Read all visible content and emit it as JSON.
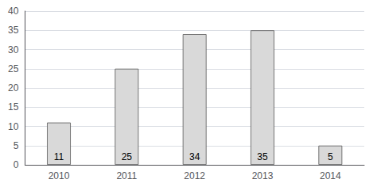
{
  "chart_data": {
    "type": "bar",
    "categories": [
      "2010",
      "2011",
      "2012",
      "2013",
      "2014"
    ],
    "values": [
      11,
      25,
      34,
      35,
      5
    ],
    "color": "#d9d9d9",
    "ylim": [
      0,
      40
    ],
    "yticks": [
      0,
      5,
      10,
      15,
      20,
      25,
      30,
      35,
      40
    ],
    "grid": true,
    "data_labels": true
  }
}
